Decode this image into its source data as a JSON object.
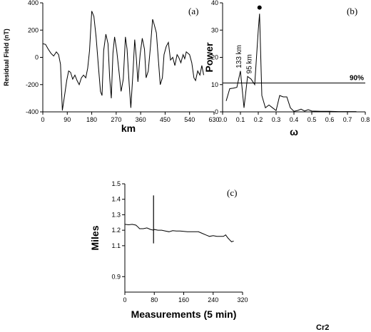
{
  "footer_label": "Cr2",
  "chart_data": [
    {
      "id": "a",
      "panel_label": "(a)",
      "type": "line",
      "xlabel": "km",
      "ylabel": "Residual Field (nT)",
      "xlim": [
        0,
        630
      ],
      "ylim": [
        -400,
        400
      ],
      "xticks": [
        0,
        90,
        180,
        270,
        360,
        450,
        540,
        630
      ],
      "yticks": [
        -400,
        -200,
        0,
        200,
        400
      ],
      "grid": false,
      "series": [
        {
          "x": [
            0,
            10,
            20,
            30,
            40,
            50,
            58,
            65,
            72,
            80,
            88,
            95,
            102,
            110,
            118,
            126,
            134,
            142,
            150,
            158,
            165,
            172,
            180,
            188,
            196,
            204,
            212,
            218,
            224,
            232,
            240,
            246,
            252,
            258,
            264,
            272,
            280,
            288,
            296,
            304,
            310,
            318,
            324,
            332,
            338,
            344,
            350,
            358,
            366,
            374,
            380,
            388,
            396,
            404,
            410,
            418,
            426,
            432,
            440,
            446,
            454,
            462,
            470,
            478,
            486,
            494,
            500,
            508,
            516,
            522,
            528,
            534,
            540,
            548,
            556,
            562,
            570,
            578,
            585,
            592
          ],
          "y": [
            100,
            95,
            60,
            30,
            10,
            40,
            20,
            -50,
            -390,
            -280,
            -170,
            -100,
            -110,
            -160,
            -130,
            -170,
            -200,
            -150,
            -130,
            -150,
            -80,
            50,
            340,
            300,
            150,
            -50,
            -250,
            -280,
            50,
            170,
            100,
            -150,
            -300,
            30,
            150,
            50,
            -100,
            -250,
            -160,
            150,
            60,
            -200,
            -370,
            -100,
            130,
            0,
            -180,
            20,
            140,
            60,
            -150,
            -100,
            80,
            280,
            240,
            180,
            -40,
            -200,
            -150,
            20,
            80,
            110,
            -20,
            0,
            -60,
            20,
            0,
            -40,
            20,
            -10,
            40,
            30,
            20,
            -40,
            -150,
            -170,
            -100,
            -130,
            -60,
            -130
          ]
        }
      ]
    },
    {
      "id": "b",
      "panel_label": "(b)",
      "type": "line",
      "xlabel": "ω",
      "ylabel": "Power",
      "xlim": [
        0,
        0.8
      ],
      "ylim": [
        0,
        40
      ],
      "xticks": [
        "0.0",
        "0.1",
        "0.2",
        "0.3",
        "0.4",
        "0.5",
        "0.6",
        "0.7",
        "0.8"
      ],
      "yticks": [
        0,
        10,
        20,
        30,
        40
      ],
      "grid": false,
      "reference_line": {
        "y": 10.6,
        "label": "90%"
      },
      "peak_marker": {
        "x": 0.207,
        "y": 37.5
      },
      "annotations": [
        "133 km",
        "95 km"
      ],
      "series": [
        {
          "x": [
            0.02,
            0.04,
            0.06,
            0.08,
            0.1,
            0.12,
            0.14,
            0.16,
            0.18,
            0.2,
            0.207,
            0.22,
            0.24,
            0.26,
            0.28,
            0.3,
            0.32,
            0.34,
            0.36,
            0.38,
            0.4,
            0.42,
            0.44,
            0.46,
            0.48,
            0.5,
            0.55,
            0.6,
            0.65,
            0.7,
            0.75
          ],
          "y": [
            4,
            8.5,
            8.7,
            9,
            15,
            1.5,
            13,
            12,
            10,
            30,
            36,
            6,
            1.5,
            2.5,
            1.5,
            0.5,
            6,
            5.5,
            5.5,
            1.5,
            0.2,
            0.5,
            1,
            0.3,
            0.8,
            0.3,
            0.2,
            0.2,
            0.1,
            0.1,
            0.1
          ]
        }
      ]
    },
    {
      "id": "c",
      "panel_label": "(c)",
      "type": "line",
      "xlabel": "Measurements (5 min)",
      "ylabel": "Miles",
      "xlim": [
        0,
        320
      ],
      "ylim": [
        0.8,
        1.5
      ],
      "xticks": [
        0,
        80,
        160,
        240,
        320
      ],
      "yticks": [
        "0.9",
        "1.1",
        "1.2",
        "1.3",
        "1.4",
        "1.5"
      ],
      "grid": false,
      "spike": {
        "x": 78,
        "ymin": 1.115,
        "ymax": 1.425
      },
      "series": [
        {
          "x": [
            0,
            10,
            20,
            30,
            36,
            40,
            50,
            60,
            70,
            78,
            80,
            90,
            100,
            110,
            120,
            130,
            140,
            150,
            160,
            170,
            180,
            190,
            200,
            210,
            220,
            230,
            240,
            250,
            260,
            268,
            274,
            280,
            286,
            290,
            296
          ],
          "y": [
            1.238,
            1.235,
            1.238,
            1.233,
            1.22,
            1.21,
            1.21,
            1.215,
            1.205,
            1.2,
            1.205,
            1.2,
            1.2,
            1.195,
            1.19,
            1.197,
            1.195,
            1.195,
            1.193,
            1.19,
            1.19,
            1.19,
            1.19,
            1.18,
            1.17,
            1.16,
            1.165,
            1.16,
            1.16,
            1.16,
            1.17,
            1.15,
            1.135,
            1.125,
            1.13
          ]
        }
      ]
    }
  ]
}
